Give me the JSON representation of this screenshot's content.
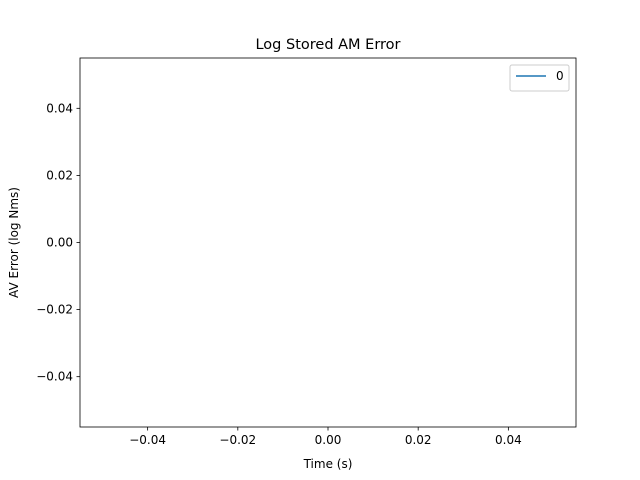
{
  "chart_data": {
    "type": "line",
    "title": "Log Stored AM Error",
    "xlabel": "Time (s)",
    "ylabel": "AV Error (log Nms)",
    "xlim": [
      -0.055,
      0.055
    ],
    "ylim": [
      -0.055,
      0.055
    ],
    "xticks": [
      -0.04,
      -0.02,
      0.0,
      0.02,
      0.04
    ],
    "xtick_labels": [
      "−0.04",
      "−0.02",
      "0.00",
      "0.02",
      "0.04"
    ],
    "yticks": [
      -0.04,
      -0.02,
      0.0,
      0.02,
      0.04
    ],
    "ytick_labels": [
      "−0.04",
      "−0.02",
      "0.00",
      "0.02",
      "0.04"
    ],
    "grid": false,
    "legend_position": "top-right",
    "series": [
      {
        "name": "0",
        "color": "#1f77b4",
        "x": [],
        "y": []
      }
    ]
  }
}
